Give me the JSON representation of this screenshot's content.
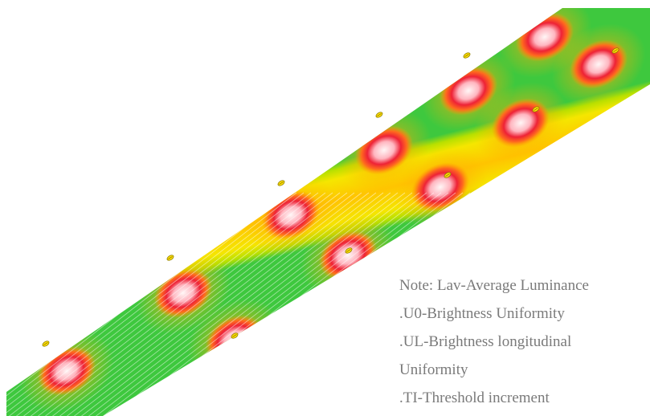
{
  "figure": {
    "kind": "road lighting luminance false-color rendering",
    "colors": {
      "road_green": "#3ec83e",
      "road_yellow": "#f5e600",
      "road_orange": "#ffc000",
      "spot_red": "#e8102a",
      "spot_center": "#fff4f4",
      "luminaire": "#ffe000"
    }
  },
  "note": {
    "lines": [
      "Note: Lav-Average Luminance",
      ".U0-Brightness Uniformity",
      ".UL-Brightness longitudinal",
      "Uniformity",
      ".TI-Threshold increment"
    ]
  }
}
